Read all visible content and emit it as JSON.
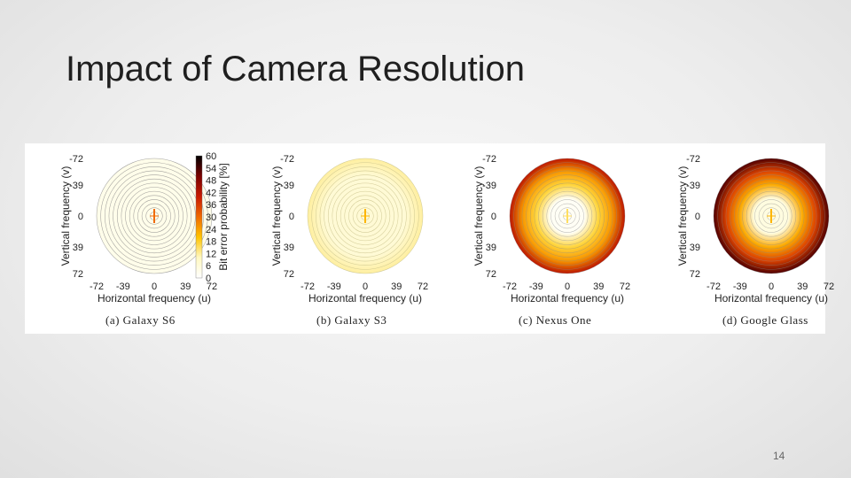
{
  "slide": {
    "title": "Impact of Camera Resolution",
    "page_number": "14"
  },
  "colorbar": {
    "label": "Bit error probability [%]",
    "ticks": [
      "60",
      "54",
      "48",
      "42",
      "36",
      "30",
      "24",
      "18",
      "12",
      "6",
      "0"
    ],
    "colors": [
      "#000000",
      "#7a0000",
      "#c81a00",
      "#f06a00",
      "#ffc400",
      "#fff8c0",
      "#ffffff"
    ]
  },
  "chart_data": [
    {
      "type": "heatmap",
      "caption": "(a) Galaxy S6",
      "xlabel": "Horizontal frequency (u)",
      "ylabel": "Vertical frequency (v)",
      "x_ticks": [
        "-72",
        "-39",
        "0",
        "39",
        "72"
      ],
      "y_ticks": [
        "-72",
        "-39",
        "0",
        "39",
        "72"
      ],
      "xlim": [
        -72,
        72
      ],
      "ylim": [
        -72,
        72
      ],
      "value_range": [
        0,
        60
      ],
      "center_error": 30,
      "ring_error": 2,
      "edge_error": 2
    },
    {
      "type": "heatmap",
      "caption": "(b) Galaxy S3",
      "xlabel": "Horizontal frequency (u)",
      "ylabel": "Vertical frequency (v)",
      "x_ticks": [
        "-72",
        "-39",
        "0",
        "39",
        "72"
      ],
      "y_ticks": [
        "-72",
        "-39",
        "0",
        "39",
        "72"
      ],
      "xlim": [
        -72,
        72
      ],
      "ylim": [
        -72,
        72
      ],
      "value_range": [
        0,
        60
      ],
      "center_error": 20,
      "ring_error": 4,
      "edge_error": 8
    },
    {
      "type": "heatmap",
      "caption": "(c) Nexus One",
      "xlabel": "Horizontal frequency (u)",
      "ylabel": "Vertical frequency (v)",
      "x_ticks": [
        "-72",
        "-39",
        "0",
        "39",
        "72"
      ],
      "y_ticks": [
        "-72",
        "-39",
        "0",
        "39",
        "72"
      ],
      "xlim": [
        -72,
        72
      ],
      "ylim": [
        -72,
        72
      ],
      "value_range": [
        0,
        60
      ],
      "center_error": 12,
      "inner_error": 1,
      "mid_error": 24,
      "edge_error": 44
    },
    {
      "type": "heatmap",
      "caption": "(d) Google Glass",
      "xlabel": "Horizontal frequency (u)",
      "ylabel": "Vertical frequency (v)",
      "x_ticks": [
        "-72",
        "-39",
        "0",
        "39",
        "72"
      ],
      "y_ticks": [
        "-72",
        "-39",
        "0",
        "39",
        "72"
      ],
      "xlim": [
        -72,
        72
      ],
      "ylim": [
        -72,
        72
      ],
      "value_range": [
        0,
        60
      ],
      "center_error": 20,
      "inner_error": 3,
      "mid_error": 36,
      "edge_error": 56
    }
  ]
}
